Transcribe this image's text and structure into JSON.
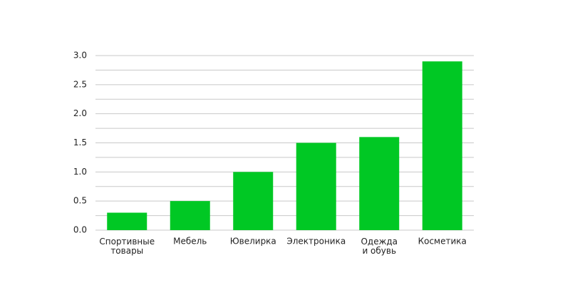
{
  "chart_data": {
    "type": "bar",
    "categories": [
      "Спортивные товары",
      "Мебель",
      "Ювелирка",
      "Электроника",
      "Одежда и обувь",
      "Косметика"
    ],
    "values": [
      0.3,
      0.5,
      1.0,
      1.5,
      1.6,
      2.9
    ],
    "color": "#00c824",
    "ylim": [
      0,
      3
    ],
    "yticks": [
      {
        "value": 0,
        "label": "0.0"
      },
      0.5,
      {
        "value": 1,
        "label": "1.0"
      },
      1.5,
      {
        "value": 2,
        "label": "2.0"
      },
      2.5,
      {
        "value": 3,
        "label": "3.0"
      }
    ],
    "grid": true,
    "minor_grid": true
  }
}
